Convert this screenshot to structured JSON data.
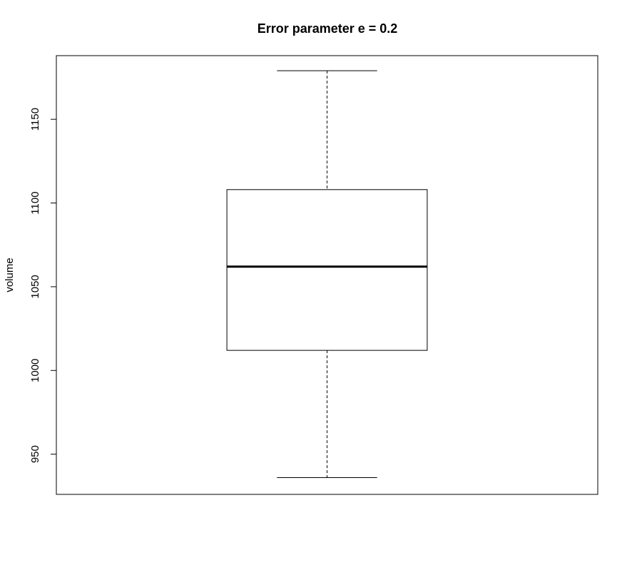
{
  "chart_data": {
    "type": "boxplot",
    "title": "Error parameter e = 0.2",
    "xlabel": "",
    "ylabel": "volume",
    "ylim": [
      926,
      1188
    ],
    "yticks": [
      950,
      1000,
      1050,
      1100,
      1150
    ],
    "grid": false,
    "legend": "none",
    "boxes": [
      {
        "whisker_low": 936,
        "q1": 1012,
        "median": 1062,
        "q3": 1108,
        "whisker_high": 1179
      }
    ],
    "colors": {
      "stroke": "#000000",
      "background": "#ffffff"
    }
  }
}
